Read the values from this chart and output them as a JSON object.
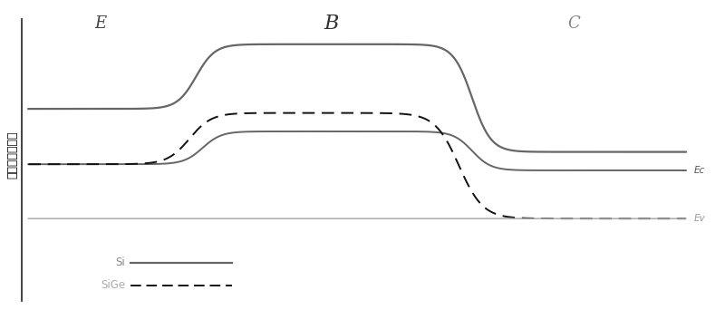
{
  "title_E": "E",
  "title_B": "B",
  "title_C": "C",
  "ylabel": "能量（电子伏）",
  "label_Si": "Si",
  "label_SiGe": "SiGe",
  "label_Ec": "Ec",
  "label_Ev": "Ev",
  "bg_color": "#ffffff",
  "si_color": "#666666",
  "sige_color": "#aaaaaa",
  "dashed_color": "#111111",
  "ec_label_color": "#555555",
  "ev_label_color": "#999999",
  "spine_color": "#333333"
}
